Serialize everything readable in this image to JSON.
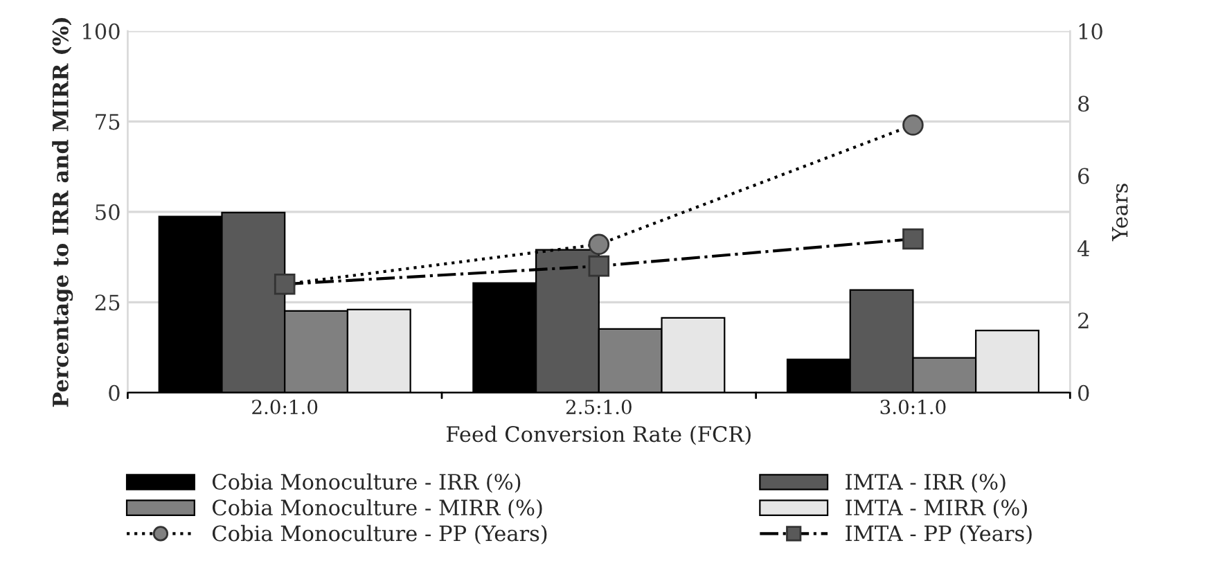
{
  "chart_data": {
    "type": "bar",
    "xlabel": "Feed Conversion Rate (FCR)",
    "ylabel": "Percentage to IRR and MIRR (%)",
    "y2label": "Years",
    "categories": [
      "2.0:1.0",
      "2.5:1.0",
      "3.0:1.0"
    ],
    "series": [
      {
        "name": "Cobia Monoculture - IRR (%)",
        "color": "#000000",
        "values": [
          48.7,
          30.3,
          9.2
        ]
      },
      {
        "name": "IMTA - IRR (%)",
        "color": "#595959",
        "values": [
          49.8,
          39.5,
          28.4
        ]
      },
      {
        "name": "Cobia Monoculture - MIRR (%)",
        "color": "#808080",
        "values": [
          22.6,
          17.6,
          9.6
        ]
      },
      {
        "name": "IMTA - MIRR (%)",
        "color": "#e6e6e6",
        "values": [
          23.0,
          20.7,
          17.2
        ]
      },
      {
        "name": "Cobia Monoculture - PP (Years)",
        "type": "line",
        "axis": "y2",
        "color": "#808080",
        "marker": "circle",
        "line_style": "dotted",
        "values": [
          3.0,
          4.1,
          7.4
        ]
      },
      {
        "name": "IMTA - PP (Years)",
        "type": "line",
        "axis": "y2",
        "color": "#595959",
        "marker": "square",
        "line_style": "dashdot",
        "values": [
          3.0,
          3.5,
          4.25
        ]
      }
    ],
    "ylim": [
      0,
      100
    ],
    "yticks": [
      0,
      25,
      50,
      75,
      100
    ],
    "y2lim": [
      0,
      10
    ],
    "y2ticks": [
      0,
      2,
      4,
      6,
      8,
      10
    ],
    "grid": "y",
    "legend": "bottom"
  }
}
